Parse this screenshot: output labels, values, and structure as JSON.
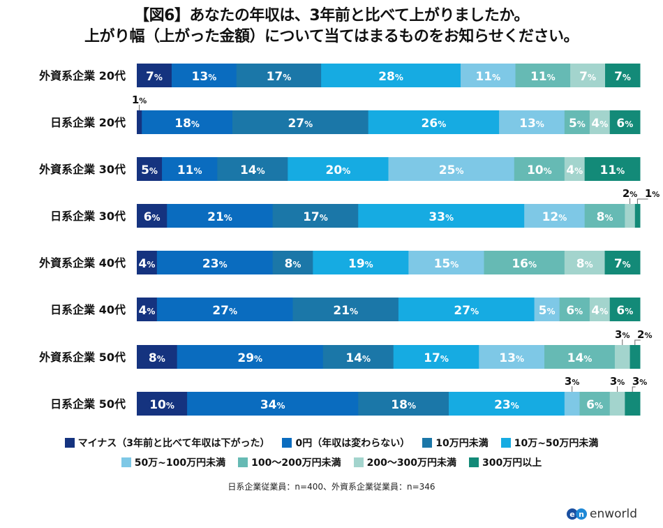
{
  "chart_data": {
    "type": "bar",
    "orientation": "horizontal",
    "stacked": true,
    "title": "【図6】あなたの年収は、3年前と比べて上がりましたか。",
    "subtitle": "上がり幅（上がった金額）について当てはまるものをお知らせください。",
    "xlabel": "",
    "ylabel": "",
    "xlim": [
      0,
      100
    ],
    "unit": "%",
    "grid": false,
    "legend_position": "bottom",
    "categories": [
      "外資系企業 20代",
      "日系企業 20代",
      "外資系企業 30代",
      "日系企業 30代",
      "外資系企業 40代",
      "日系企業 40代",
      "外資系企業 50代",
      "日系企業 50代"
    ],
    "series": [
      {
        "name": "マイナス（3年前と比べて年収は下がった）",
        "color": "#15337f",
        "values": [
          7,
          1,
          5,
          6,
          4,
          4,
          8,
          10
        ]
      },
      {
        "name": "0円（年収は変わらない）",
        "color": "#0a6cbf",
        "values": [
          13,
          18,
          11,
          21,
          23,
          27,
          29,
          34
        ]
      },
      {
        "name": "10万円未満",
        "color": "#1b77a8",
        "values": [
          17,
          27,
          14,
          17,
          8,
          21,
          14,
          18
        ]
      },
      {
        "name": "10万~50万円未満",
        "color": "#16abe2",
        "values": [
          28,
          26,
          20,
          33,
          19,
          27,
          17,
          23
        ]
      },
      {
        "name": "50万~100万円未満",
        "color": "#7ec8e6",
        "values": [
          11,
          13,
          25,
          12,
          15,
          5,
          13,
          3
        ]
      },
      {
        "name": "100～200万円未満",
        "color": "#66bab4",
        "values": [
          11,
          5,
          10,
          8,
          16,
          6,
          14,
          6
        ]
      },
      {
        "name": "200～300万円未満",
        "color": "#a3d4cd",
        "values": [
          7,
          4,
          4,
          2,
          8,
          4,
          3,
          3
        ]
      },
      {
        "name": "300万円以上",
        "color": "#138a78",
        "values": [
          7,
          6,
          11,
          1,
          7,
          6,
          2,
          3
        ]
      }
    ],
    "callouts": [
      {
        "row": 1,
        "series": 0
      },
      {
        "row": 3,
        "series": 6
      },
      {
        "row": 3,
        "series": 7
      },
      {
        "row": 6,
        "series": 6
      },
      {
        "row": 6,
        "series": 7
      },
      {
        "row": 7,
        "series": 4
      },
      {
        "row": 7,
        "series": 6
      },
      {
        "row": 7,
        "series": 7
      }
    ]
  },
  "legend": {
    "row1": [
      {
        "label": "マイナス（3年前と比べて年収は下がった）",
        "color": "#15337f"
      },
      {
        "label": "0円（年収は変わらない）",
        "color": "#0a6cbf"
      },
      {
        "label": "10万円未満",
        "color": "#1b77a8"
      },
      {
        "label": "10万~50万円未満",
        "color": "#16abe2"
      }
    ],
    "row2": [
      {
        "label": "50万~100万円未満",
        "color": "#7ec8e6"
      },
      {
        "label": "100～200万円未満",
        "color": "#66bab4"
      },
      {
        "label": "200～300万円未満",
        "color": "#a3d4cd"
      },
      {
        "label": "300万円以上",
        "color": "#138a78"
      }
    ]
  },
  "note": "日系企業従業員：n=400、外資系企業従業員：n=346",
  "logo": {
    "mark": "en",
    "text": "enworld"
  },
  "percent_sign": "%"
}
